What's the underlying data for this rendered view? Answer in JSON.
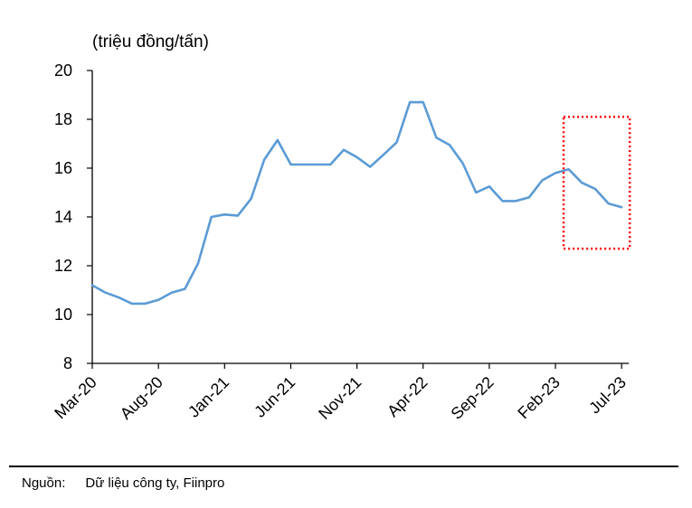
{
  "chart_data": {
    "type": "line",
    "ylabel": "(triệu đồng/tấn)",
    "ylim": [
      8,
      20
    ],
    "yticks": [
      "8",
      "10",
      "12",
      "14",
      "16",
      "18",
      "20"
    ],
    "xtick_labels": [
      "Mar-20",
      "Aug-20",
      "Jan-21",
      "Jun-21",
      "Nov-21",
      "Apr-22",
      "Sep-22",
      "Feb-23",
      "Jul-23"
    ],
    "x": [
      "Mar-20",
      "Apr-20",
      "May-20",
      "Jun-20",
      "Jul-20",
      "Aug-20",
      "Sep-20",
      "Oct-20",
      "Nov-20",
      "Dec-20",
      "Jan-21",
      "Feb-21",
      "Mar-21",
      "Apr-21",
      "May-21",
      "Jun-21",
      "Jul-21",
      "Aug-21",
      "Sep-21",
      "Oct-21",
      "Nov-21",
      "Dec-21",
      "Jan-22",
      "Feb-22",
      "Mar-22",
      "Apr-22",
      "May-22",
      "Jun-22",
      "Jul-22",
      "Aug-22",
      "Sep-22",
      "Oct-22",
      "Nov-22",
      "Dec-22",
      "Jan-23",
      "Feb-23",
      "Mar-23",
      "Apr-23",
      "May-23",
      "Jun-23",
      "Jul-23"
    ],
    "series": [
      {
        "values": [
          11.2,
          10.9,
          10.7,
          10.45,
          10.45,
          10.6,
          10.9,
          11.05,
          12.1,
          14.0,
          14.1,
          14.05,
          14.75,
          16.35,
          17.15,
          16.15,
          16.15,
          16.15,
          16.15,
          16.75,
          16.45,
          16.05,
          16.55,
          17.05,
          18.7,
          18.7,
          17.25,
          16.95,
          16.2,
          15.0,
          15.25,
          14.65,
          14.65,
          14.8,
          15.5,
          15.8,
          15.95,
          15.4,
          15.15,
          14.55,
          14.4
        ],
        "color": "#5b9bd5"
      }
    ],
    "highlight": {
      "from": "Feb-23",
      "to": "Jul-23",
      "color": "#ff0000",
      "style": "dotted"
    },
    "grid": false,
    "legend": "none"
  },
  "source": {
    "label": "Nguồn:",
    "text": "Dữ liệu công ty, Fiinpro"
  }
}
